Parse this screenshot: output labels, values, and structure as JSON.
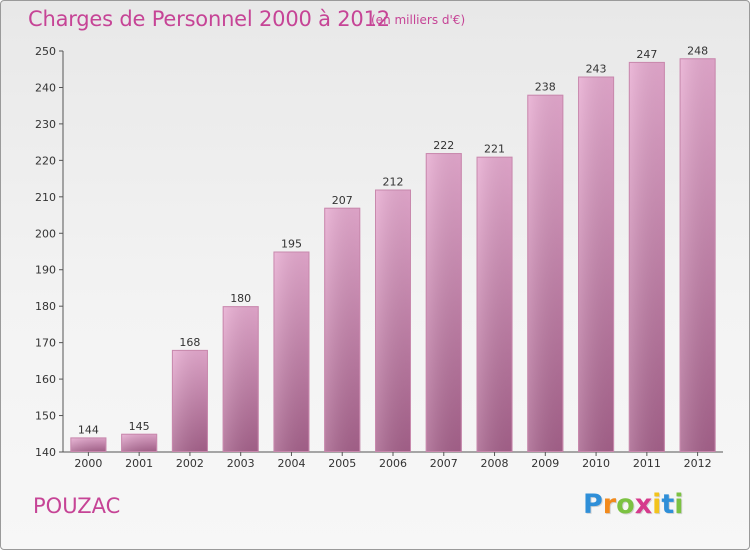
{
  "chart_data": {
    "type": "bar",
    "title": "Charges de Personnel 2000 à 2012",
    "subtitle": "(en milliers d'€)",
    "categories": [
      "2000",
      "2001",
      "2002",
      "2003",
      "2004",
      "2005",
      "2006",
      "2007",
      "2008",
      "2009",
      "2010",
      "2011",
      "2012"
    ],
    "values": [
      144,
      145,
      168,
      180,
      195,
      207,
      212,
      222,
      221,
      238,
      243,
      247,
      248
    ],
    "data_labels": [
      "144",
      "145",
      "168",
      "180",
      "195",
      "207",
      "212",
      "222",
      "221",
      "238",
      "243",
      "247",
      "248"
    ],
    "ylim": [
      140,
      250
    ],
    "yticks": [
      140,
      150,
      160,
      170,
      180,
      190,
      200,
      210,
      220,
      230,
      240,
      250
    ],
    "ytick_labels": [
      "140",
      "150",
      "160",
      "170",
      "180",
      "190",
      "200",
      "210",
      "220",
      "230",
      "240",
      "250"
    ],
    "grid": false,
    "legend": "none",
    "colors": {
      "bar_light": "#e6a8cf",
      "bar_dark": "#a9658f",
      "text": "#c64496"
    }
  },
  "commune": "POUZAC",
  "logo": {
    "text": "Proxiti",
    "letters": [
      "P",
      "r",
      "o",
      "x",
      "i",
      "t",
      "i"
    ],
    "letter_colors": [
      "#2f8fd8",
      "#f28a1c",
      "#7cc242",
      "#d63a8c",
      "#f2c31c",
      "#2f8fd8",
      "#7cc242"
    ]
  }
}
